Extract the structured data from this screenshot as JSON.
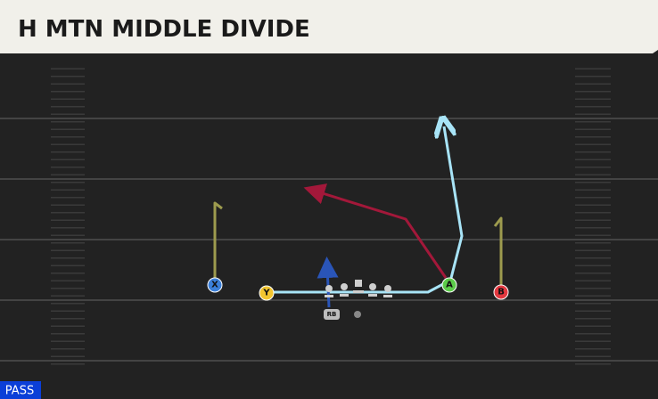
{
  "header": {
    "title": "H MTN MIDDLE DIVIDE"
  },
  "players": [
    {
      "label": "X"
    },
    {
      "label": "Y"
    },
    {
      "label": "A"
    },
    {
      "label": "B"
    },
    {
      "label": "RB"
    }
  ],
  "badge": "PASS"
}
